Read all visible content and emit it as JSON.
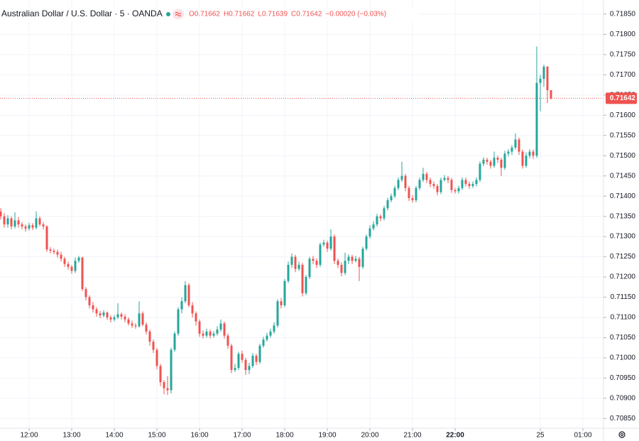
{
  "chart_data": {
    "type": "candlestick",
    "title": "Australian Dollar / U.S. Dollar · 5 · OANDA",
    "legend_values": [
      "O0.71662",
      "H0.71662",
      "L0.71639",
      "C0.71642",
      "−0.00020 (−0.03%)"
    ],
    "up_color": "#26a69a",
    "down_color": "#ef5350",
    "grid": true,
    "last_price": {
      "value": 0.71642,
      "label": "0.71642"
    },
    "xlim": [
      679,
      1529
    ],
    "xticks": [
      {
        "value": 720,
        "label": "12:00"
      },
      {
        "value": 780,
        "label": "13:00"
      },
      {
        "value": 840,
        "label": "14:00"
      },
      {
        "value": 900,
        "label": "15:00"
      },
      {
        "value": 960,
        "label": "16:00"
      },
      {
        "value": 1020,
        "label": "17:00"
      },
      {
        "value": 1080,
        "label": "18:00"
      },
      {
        "value": 1140,
        "label": "19:00"
      },
      {
        "value": 1200,
        "label": "20:00"
      },
      {
        "value": 1260,
        "label": "21:00"
      },
      {
        "value": 1320,
        "label": "22:00"
      },
      {
        "value": 1440,
        "label": "25"
      },
      {
        "value": 1500,
        "label": "01:00"
      }
    ],
    "ylim": [
      0.70826,
      0.71885
    ],
    "yticks": [
      {
        "value": 0.7085,
        "label": "0.70850"
      },
      {
        "value": 0.709,
        "label": "0.70900"
      },
      {
        "value": 0.7095,
        "label": "0.70950"
      },
      {
        "value": 0.71,
        "label": "0.71000"
      },
      {
        "value": 0.7105,
        "label": "0.71050"
      },
      {
        "value": 0.711,
        "label": "0.71100"
      },
      {
        "value": 0.7115,
        "label": "0.71150"
      },
      {
        "value": 0.712,
        "label": "0.71200"
      },
      {
        "value": 0.7125,
        "label": "0.71250"
      },
      {
        "value": 0.713,
        "label": "0.71300"
      },
      {
        "value": 0.7135,
        "label": "0.71350"
      },
      {
        "value": 0.714,
        "label": "0.71400"
      },
      {
        "value": 0.7145,
        "label": "0.71450"
      },
      {
        "value": 0.715,
        "label": "0.71500"
      },
      {
        "value": 0.7155,
        "label": "0.71550"
      },
      {
        "value": 0.716,
        "label": "0.71600"
      },
      {
        "value": 0.7165,
        "label": "0.71650"
      },
      {
        "value": 0.717,
        "label": "0.71700"
      },
      {
        "value": 0.7175,
        "label": "0.71750"
      },
      {
        "value": 0.718,
        "label": "0.71800"
      },
      {
        "value": 0.7185,
        "label": "0.71850"
      }
    ],
    "x": [
      680,
      685,
      690,
      695,
      700,
      705,
      710,
      715,
      720,
      725,
      730,
      735,
      740,
      745,
      750,
      755,
      760,
      765,
      770,
      775,
      780,
      785,
      790,
      795,
      800,
      805,
      810,
      815,
      820,
      825,
      830,
      835,
      840,
      845,
      850,
      855,
      860,
      865,
      870,
      875,
      880,
      885,
      890,
      895,
      900,
      905,
      910,
      915,
      920,
      925,
      930,
      935,
      940,
      945,
      950,
      955,
      960,
      965,
      970,
      975,
      980,
      985,
      990,
      995,
      1000,
      1005,
      1010,
      1015,
      1020,
      1025,
      1030,
      1035,
      1040,
      1045,
      1050,
      1055,
      1060,
      1065,
      1070,
      1075,
      1080,
      1085,
      1090,
      1095,
      1100,
      1105,
      1110,
      1115,
      1120,
      1125,
      1130,
      1135,
      1140,
      1145,
      1150,
      1155,
      1160,
      1165,
      1170,
      1175,
      1180,
      1185,
      1190,
      1195,
      1200,
      1205,
      1210,
      1215,
      1220,
      1225,
      1230,
      1235,
      1240,
      1245,
      1250,
      1255,
      1260,
      1265,
      1270,
      1275,
      1280,
      1285,
      1290,
      1295,
      1300,
      1305,
      1310,
      1315,
      1320,
      1325,
      1330,
      1335,
      1340,
      1345,
      1350,
      1355,
      1360,
      1365,
      1370,
      1375,
      1380,
      1385,
      1390,
      1395,
      1400,
      1405,
      1410,
      1415,
      1420,
      1425,
      1430,
      1435,
      1440,
      1445,
      1450,
      1455
    ],
    "open": [
      0.71362,
      0.7135,
      0.7133,
      0.71345,
      0.71325,
      0.7134,
      0.7133,
      0.71325,
      0.7132,
      0.71328,
      0.71322,
      0.71345,
      0.7133,
      0.71325,
      0.71268,
      0.71265,
      0.71262,
      0.71255,
      0.71245,
      0.71232,
      0.71225,
      0.71215,
      0.7124,
      0.71248,
      0.7117,
      0.7115,
      0.7113,
      0.7112,
      0.7111,
      0.71105,
      0.71112,
      0.711,
      0.71095,
      0.711,
      0.71108,
      0.71102,
      0.71095,
      0.71085,
      0.7108,
      0.71078,
      0.7111,
      0.71082,
      0.71065,
      0.7104,
      0.7102,
      0.7098,
      0.7094,
      0.70925,
      0.7092,
      0.7102,
      0.7106,
      0.7112,
      0.7114,
      0.7118,
      0.7113,
      0.7111,
      0.7109,
      0.7106,
      0.71055,
      0.71065,
      0.71055,
      0.7106,
      0.7107,
      0.71085,
      0.71055,
      0.7103,
      0.7097,
      0.70975,
      0.7101,
      0.70995,
      0.7097,
      0.7098,
      0.71005,
      0.7099,
      0.7103,
      0.71045,
      0.71055,
      0.71065,
      0.7108,
      0.7114,
      0.7113,
      0.7119,
      0.7123,
      0.7125,
      0.7122,
      0.7123,
      0.7116,
      0.712,
      0.71245,
      0.7124,
      0.7123,
      0.7128,
      0.71285,
      0.7127,
      0.713,
      0.7124,
      0.7123,
      0.7121,
      0.7124,
      0.7125,
      0.7124,
      0.71245,
      0.71225,
      0.7127,
      0.713,
      0.7132,
      0.7133,
      0.7135,
      0.71345,
      0.7137,
      0.7139,
      0.714,
      0.7142,
      0.7144,
      0.7145,
      0.7142,
      0.71395,
      0.7139,
      0.7142,
      0.7144,
      0.71455,
      0.7144,
      0.7143,
      0.71425,
      0.7141,
      0.7144,
      0.71445,
      0.7144,
      0.71415,
      0.71412,
      0.7142,
      0.7144,
      0.7143,
      0.71425,
      0.7143,
      0.7144,
      0.7148,
      0.7149,
      0.71485,
      0.71475,
      0.71495,
      0.7149,
      0.7147,
      0.71505,
      0.7151,
      0.7152,
      0.7154,
      0.7151,
      0.71475,
      0.715,
      0.7151,
      0.715,
      0.7168,
      0.7169,
      0.7172,
      0.71662
    ],
    "high": [
      0.7137,
      0.71358,
      0.71353,
      0.7135,
      0.7136,
      0.71348,
      0.71336,
      0.7133,
      0.71334,
      0.71333,
      0.71362,
      0.7135,
      0.71336,
      0.71328,
      0.71274,
      0.7127,
      0.71268,
      0.71262,
      0.7125,
      0.71238,
      0.7123,
      0.71248,
      0.71252,
      0.7125,
      0.71175,
      0.71155,
      0.71138,
      0.71125,
      0.71116,
      0.71118,
      0.71115,
      0.71105,
      0.71106,
      0.71135,
      0.71112,
      0.71108,
      0.711,
      0.71092,
      0.71086,
      0.7114,
      0.71115,
      0.71088,
      0.7107,
      0.71045,
      0.71025,
      0.70985,
      0.70945,
      0.70955,
      0.71025,
      0.71065,
      0.71125,
      0.7115,
      0.7119,
      0.71185,
      0.71138,
      0.71115,
      0.71095,
      0.71068,
      0.71072,
      0.7107,
      0.71066,
      0.71078,
      0.71095,
      0.7109,
      0.7106,
      0.71035,
      0.70985,
      0.71015,
      0.71018,
      0.71,
      0.70988,
      0.71012,
      0.7101,
      0.71035,
      0.71052,
      0.71062,
      0.71072,
      0.71088,
      0.71145,
      0.71148,
      0.71195,
      0.71238,
      0.71258,
      0.71255,
      0.71238,
      0.71235,
      0.71205,
      0.7125,
      0.71252,
      0.71246,
      0.71285,
      0.71292,
      0.7129,
      0.71318,
      0.71305,
      0.71246,
      0.71236,
      0.7126,
      0.71256,
      0.71255,
      0.71252,
      0.7125,
      0.71275,
      0.71305,
      0.71328,
      0.71338,
      0.71356,
      0.71355,
      0.71376,
      0.71396,
      0.71406,
      0.71426,
      0.71446,
      0.71485,
      0.71455,
      0.71425,
      0.71402,
      0.71425,
      0.71446,
      0.7147,
      0.7146,
      0.71446,
      0.71436,
      0.7143,
      0.71446,
      0.71452,
      0.7145,
      0.71445,
      0.7142,
      0.71426,
      0.71446,
      0.71446,
      0.71436,
      0.71436,
      0.71446,
      0.71486,
      0.71496,
      0.71495,
      0.7149,
      0.7151,
      0.715,
      0.71495,
      0.71512,
      0.71516,
      0.71526,
      0.71555,
      0.71545,
      0.71515,
      0.71508,
      0.71516,
      0.71515,
      0.7177,
      0.717,
      0.71725,
      0.71722,
      0.71662
    ],
    "low": [
      0.71342,
      0.71322,
      0.71322,
      0.71318,
      0.7132,
      0.71322,
      0.71318,
      0.71312,
      0.71315,
      0.71316,
      0.71318,
      0.71325,
      0.71318,
      0.71262,
      0.71258,
      0.71256,
      0.71248,
      0.71238,
      0.71225,
      0.71218,
      0.71208,
      0.7121,
      0.71235,
      0.71165,
      0.71142,
      0.71122,
      0.71112,
      0.71102,
      0.71098,
      0.711,
      0.71094,
      0.71088,
      0.7109,
      0.71096,
      0.71095,
      0.71088,
      0.7108,
      0.71074,
      0.71072,
      0.71075,
      0.71078,
      0.71058,
      0.7103,
      0.71012,
      0.70972,
      0.7093,
      0.7091,
      0.70908,
      0.70912,
      0.71015,
      0.71055,
      0.7111,
      0.71135,
      0.71125,
      0.711,
      0.7108,
      0.71052,
      0.71048,
      0.7105,
      0.71048,
      0.7105,
      0.71055,
      0.71065,
      0.71048,
      0.71022,
      0.70962,
      0.70965,
      0.7097,
      0.70988,
      0.70958,
      0.7096,
      0.70975,
      0.70982,
      0.70985,
      0.71025,
      0.7104,
      0.7105,
      0.7106,
      0.71075,
      0.71122,
      0.71125,
      0.71185,
      0.71222,
      0.71212,
      0.71215,
      0.71152,
      0.71155,
      0.71195,
      0.71232,
      0.71222,
      0.71225,
      0.71275,
      0.71262,
      0.71265,
      0.71232,
      0.71222,
      0.71202,
      0.71205,
      0.71232,
      0.71232,
      0.71236,
      0.7119,
      0.7122,
      0.71265,
      0.71295,
      0.71315,
      0.71325,
      0.71338,
      0.7134,
      0.71365,
      0.71385,
      0.71395,
      0.71415,
      0.71435,
      0.71412,
      0.71388,
      0.71384,
      0.71385,
      0.71415,
      0.71435,
      0.71432,
      0.71422,
      0.71418,
      0.71402,
      0.71405,
      0.71436,
      0.71432,
      0.71408,
      0.71406,
      0.71406,
      0.71415,
      0.71424,
      0.71418,
      0.7142,
      0.71424,
      0.71435,
      0.71474,
      0.71478,
      0.71468,
      0.7147,
      0.71482,
      0.7145,
      0.71465,
      0.71498,
      0.71502,
      0.71515,
      0.71502,
      0.71468,
      0.7147,
      0.71494,
      0.71492,
      0.71495,
      0.7161,
      0.7167,
      0.7163,
      0.71639
    ],
    "close": [
      0.7135,
      0.7133,
      0.71345,
      0.71325,
      0.7134,
      0.7133,
      0.71325,
      0.7132,
      0.71328,
      0.71322,
      0.71345,
      0.7133,
      0.71325,
      0.71268,
      0.71265,
      0.71262,
      0.71255,
      0.71245,
      0.71232,
      0.71225,
      0.71215,
      0.7124,
      0.71248,
      0.7117,
      0.7115,
      0.7113,
      0.7112,
      0.7111,
      0.71105,
      0.71112,
      0.711,
      0.71095,
      0.711,
      0.71108,
      0.71102,
      0.71095,
      0.71085,
      0.7108,
      0.71078,
      0.7111,
      0.71082,
      0.71065,
      0.7104,
      0.7102,
      0.7098,
      0.7094,
      0.70925,
      0.7092,
      0.7102,
      0.7106,
      0.7112,
      0.7114,
      0.7118,
      0.7113,
      0.7111,
      0.7109,
      0.7106,
      0.71055,
      0.71065,
      0.71055,
      0.7106,
      0.7107,
      0.71085,
      0.71055,
      0.7103,
      0.7097,
      0.70975,
      0.7101,
      0.70995,
      0.7097,
      0.7098,
      0.71005,
      0.7099,
      0.7103,
      0.71045,
      0.71055,
      0.71065,
      0.7108,
      0.7114,
      0.7113,
      0.7119,
      0.7123,
      0.7125,
      0.7122,
      0.7123,
      0.7116,
      0.712,
      0.71245,
      0.7124,
      0.7123,
      0.7128,
      0.71285,
      0.7127,
      0.713,
      0.7124,
      0.7123,
      0.7121,
      0.7124,
      0.7125,
      0.7124,
      0.71245,
      0.71225,
      0.7127,
      0.713,
      0.7132,
      0.7133,
      0.7135,
      0.71345,
      0.7137,
      0.7139,
      0.714,
      0.7142,
      0.7144,
      0.7145,
      0.7142,
      0.71395,
      0.7139,
      0.7142,
      0.7144,
      0.71455,
      0.7144,
      0.7143,
      0.71425,
      0.7141,
      0.7144,
      0.71445,
      0.7144,
      0.71415,
      0.71412,
      0.7142,
      0.7144,
      0.7143,
      0.71425,
      0.7143,
      0.7144,
      0.7148,
      0.7149,
      0.71485,
      0.71475,
      0.71495,
      0.7149,
      0.7147,
      0.71505,
      0.7151,
      0.7152,
      0.7154,
      0.7151,
      0.71475,
      0.715,
      0.7151,
      0.715,
      0.7168,
      0.7169,
      0.7172,
      0.71662,
      0.71642
    ]
  }
}
